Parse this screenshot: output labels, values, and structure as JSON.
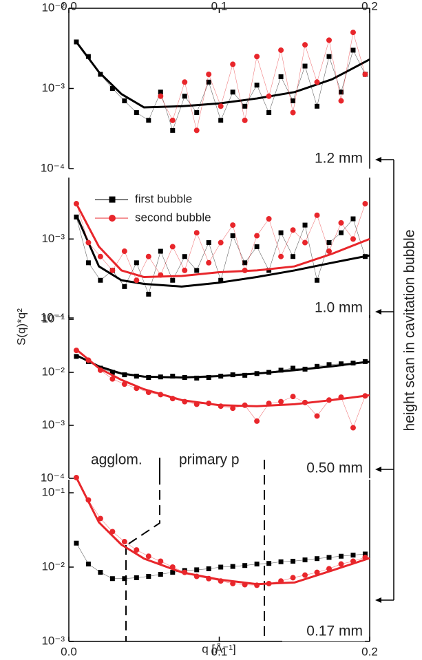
{
  "y_label": "S(q)*q²",
  "x_label": "q [Å⁻¹]",
  "side_label": "height scan in cavitation bubble",
  "chart_data": [
    {
      "type": "scatter",
      "annotation": "1.2 mm",
      "log_y": true,
      "xlim": [
        0,
        0.2
      ],
      "xticks": [
        {
          "value": 0,
          "label": "0.0"
        },
        0.1,
        0.2
      ],
      "xtick_side": "top",
      "ylim": [
        0.0001,
        0.01
      ],
      "yticks": [
        {
          "value": 0.01,
          "label": "10⁻²"
        },
        {
          "value": 0.001,
          "label": "10⁻³"
        },
        {
          "value": 0.0001,
          "label": "10⁻⁴"
        }
      ],
      "x": [
        0.005,
        0.013,
        0.021,
        0.029,
        0.037,
        0.045,
        0.053,
        0.061,
        0.069,
        0.077,
        0.085,
        0.093,
        0.101,
        0.109,
        0.117,
        0.125,
        0.133,
        0.141,
        0.149,
        0.157,
        0.165,
        0.173,
        0.181,
        0.189,
        0.197
      ],
      "fit_x": [
        0.005,
        0.02,
        0.035,
        0.05,
        0.075,
        0.1,
        0.125,
        0.15,
        0.175,
        0.2
      ],
      "series": [
        {
          "name": "first bubble",
          "color": "#000000",
          "marker": "square",
          "values": [
            0.0038,
            0.0025,
            0.0015,
            0.001,
            0.0007,
            0.0005,
            0.0004,
            0.0009,
            0.0003,
            0.0008,
            0.0005,
            0.0012,
            0.0004,
            0.0009,
            0.0006,
            0.0011,
            0.0005,
            0.0014,
            0.0007,
            0.0019,
            0.0006,
            0.0025,
            0.0009,
            0.003,
            0.0015
          ],
          "fit": [
            0.0038,
            0.0016,
            0.00085,
            0.00058,
            0.0006,
            0.00065,
            0.00075,
            0.0009,
            0.0013,
            0.0023
          ]
        },
        {
          "name": "second bubble",
          "color": "#e8262b",
          "marker": "circle",
          "values": [
            null,
            null,
            null,
            null,
            null,
            null,
            null,
            0.0008,
            0.0004,
            0.0012,
            0.0003,
            0.0015,
            0.0006,
            0.002,
            0.0004,
            0.0025,
            0.0008,
            0.003,
            0.0005,
            0.0035,
            0.0012,
            0.004,
            0.0007,
            0.005,
            0.0015
          ]
        }
      ]
    },
    {
      "type": "scatter",
      "annotation": "1.0 mm",
      "log_y": true,
      "legend": "top-left",
      "xlim": [
        0,
        0.2
      ],
      "ylim": [
        0.0001,
        0.006
      ],
      "yticks": [
        {
          "value": 0.001,
          "label": "10⁻³"
        },
        {
          "value": 0.0001,
          "label": "10⁻⁴"
        }
      ],
      "x": [
        0.005,
        0.013,
        0.021,
        0.029,
        0.037,
        0.045,
        0.053,
        0.061,
        0.069,
        0.077,
        0.085,
        0.093,
        0.101,
        0.109,
        0.117,
        0.125,
        0.133,
        0.141,
        0.149,
        0.157,
        0.165,
        0.173,
        0.181,
        0.189,
        0.197
      ],
      "fit_x": [
        0.005,
        0.02,
        0.035,
        0.05,
        0.075,
        0.1,
        0.125,
        0.15,
        0.175,
        0.2
      ],
      "series": [
        {
          "name": "first bubble",
          "color": "#000000",
          "marker": "square",
          "values": [
            0.0019,
            0.0005,
            0.0003,
            0.0004,
            0.00025,
            0.0005,
            0.0002,
            0.0007,
            0.0003,
            0.0006,
            0.0004,
            0.0009,
            0.0003,
            0.0011,
            0.0005,
            0.0008,
            0.0004,
            0.0012,
            0.0006,
            0.0015,
            0.0003,
            0.0009,
            0.0012,
            0.0018,
            0.0006
          ],
          "fit": [
            0.002,
            0.00045,
            0.0003,
            0.00027,
            0.00025,
            0.00028,
            0.00033,
            0.0004,
            0.0005,
            0.00062
          ]
        },
        {
          "name": "second bubble",
          "color": "#e8262b",
          "marker": "circle",
          "values": [
            0.0028,
            0.0009,
            0.0006,
            0.0004,
            0.0007,
            0.0003,
            0.0006,
            0.00035,
            0.0008,
            0.0004,
            0.0012,
            0.0005,
            0.0009,
            0.0015,
            0.0004,
            0.0011,
            0.0018,
            0.0006,
            0.0013,
            0.0009,
            0.002,
            0.0007,
            0.0016,
            0.001,
            0.0028
          ],
          "fit": [
            0.0028,
            0.0008,
            0.0004,
            0.00033,
            0.00034,
            0.00038,
            0.0004,
            0.00045,
            0.00065,
            0.001
          ]
        }
      ]
    },
    {
      "type": "scatter",
      "annotation": "0.50 mm",
      "log_y": true,
      "xlim": [
        0,
        0.2
      ],
      "ylim": [
        0.0001,
        0.12
      ],
      "yticks": [
        {
          "value": 0.1,
          "label": "10⁻¹"
        },
        {
          "value": 0.01,
          "label": "10⁻²"
        },
        {
          "value": 0.001,
          "label": "10⁻³"
        },
        {
          "value": 0.0001,
          "label": "10⁻⁴"
        }
      ],
      "x": [
        0.005,
        0.013,
        0.021,
        0.029,
        0.037,
        0.045,
        0.053,
        0.061,
        0.069,
        0.077,
        0.085,
        0.093,
        0.101,
        0.109,
        0.117,
        0.125,
        0.133,
        0.141,
        0.149,
        0.157,
        0.165,
        0.173,
        0.181,
        0.189,
        0.197
      ],
      "fit_x": [
        0.005,
        0.02,
        0.035,
        0.05,
        0.075,
        0.1,
        0.125,
        0.15,
        0.175,
        0.2
      ],
      "series": [
        {
          "name": "first bubble",
          "color": "#000000",
          "marker": "square",
          "values": [
            0.02,
            0.016,
            0.012,
            0.01,
            0.009,
            0.0085,
            0.008,
            0.0082,
            0.0085,
            0.008,
            0.0078,
            0.008,
            0.0085,
            0.009,
            0.0088,
            0.0095,
            0.01,
            0.011,
            0.012,
            0.0115,
            0.013,
            0.014,
            0.0145,
            0.015,
            0.016
          ],
          "fit": [
            0.021,
            0.013,
            0.0095,
            0.0083,
            0.008,
            0.0085,
            0.0095,
            0.011,
            0.013,
            0.016
          ]
        },
        {
          "name": "second bubble",
          "color": "#e8262b",
          "marker": "circle",
          "values": [
            0.026,
            0.017,
            0.011,
            0.0075,
            0.006,
            0.005,
            0.0042,
            0.0038,
            0.0032,
            0.0028,
            0.0025,
            0.0026,
            0.0023,
            0.0021,
            0.0024,
            0.0012,
            0.0026,
            0.0028,
            0.0035,
            0.0027,
            0.0015,
            0.003,
            0.0034,
            0.0009,
            0.0036
          ],
          "fit": [
            0.027,
            0.012,
            0.0072,
            0.0048,
            0.003,
            0.0024,
            0.0023,
            0.0025,
            0.003,
            0.0037
          ]
        }
      ]
    },
    {
      "type": "scatter",
      "annotation": "0.17 mm",
      "log_y": true,
      "xlim": [
        0,
        0.2
      ],
      "xticks": [
        {
          "value": 0,
          "label": "0.0"
        },
        0.1,
        0.2
      ],
      "xtick_side": "bottom",
      "ylim": [
        0.001,
        0.15
      ],
      "yticks": [
        {
          "value": 0.1,
          "label": "10⁻¹"
        },
        {
          "value": 0.01,
          "label": "10⁻²"
        },
        {
          "value": 0.001,
          "label": "10⁻³"
        }
      ],
      "region_labels": [
        "agglom.",
        "primary p"
      ],
      "vlines": [
        0.038,
        0.13
      ],
      "x": [
        0.005,
        0.013,
        0.021,
        0.029,
        0.037,
        0.045,
        0.053,
        0.061,
        0.069,
        0.077,
        0.085,
        0.093,
        0.101,
        0.109,
        0.117,
        0.125,
        0.133,
        0.141,
        0.149,
        0.157,
        0.165,
        0.173,
        0.181,
        0.189,
        0.197
      ],
      "fit_x": [
        0.005,
        0.02,
        0.035,
        0.05,
        0.075,
        0.1,
        0.125,
        0.15,
        0.175,
        0.2
      ],
      "series": [
        {
          "name": "first bubble",
          "color": "#000000",
          "marker": "square",
          "values": [
            0.021,
            0.011,
            0.0085,
            0.007,
            0.007,
            0.0072,
            0.0075,
            0.008,
            0.0085,
            0.009,
            0.0092,
            0.0095,
            0.01,
            0.0102,
            0.0105,
            0.011,
            0.0112,
            0.0118,
            0.012,
            0.0125,
            0.013,
            0.0135,
            0.014,
            0.0145,
            0.015
          ]
        },
        {
          "name": "second bubble",
          "color": "#e8262b",
          "marker": "circle",
          "values": [
            0.16,
            0.08,
            0.045,
            0.03,
            0.022,
            0.017,
            0.014,
            0.012,
            0.01,
            0.0085,
            0.0075,
            0.007,
            0.0065,
            0.006,
            0.0058,
            0.0057,
            0.006,
            0.0065,
            0.0072,
            0.0078,
            0.0085,
            0.0095,
            0.011,
            0.012,
            0.0135
          ],
          "fit": [
            0.16,
            0.04,
            0.02,
            0.013,
            0.0085,
            0.0068,
            0.0059,
            0.0062,
            0.009,
            0.0132
          ]
        }
      ]
    }
  ]
}
